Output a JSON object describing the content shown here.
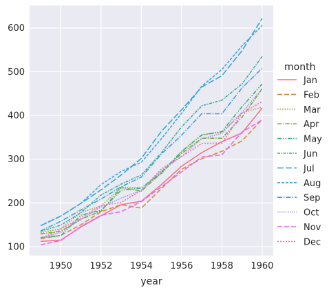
{
  "chart_data": {
    "type": "line",
    "xlabel": "year",
    "ylabel": "",
    "x": [
      1949,
      1950,
      1951,
      1952,
      1953,
      1954,
      1955,
      1956,
      1957,
      1958,
      1959,
      1960
    ],
    "xticks": [
      "1950",
      "1952",
      "1954",
      "1956",
      "1958",
      "1960"
    ],
    "yticks": [
      "100",
      "200",
      "300",
      "400",
      "500",
      "600"
    ],
    "xlim": [
      1948.45,
      1960.55
    ],
    "ylim": [
      79.6,
      651.4
    ],
    "grid": true,
    "legend_title": "month",
    "legend_position": "right",
    "series": [
      {
        "name": "Jan",
        "color": "#f77189",
        "dash": "",
        "values": [
          112,
          115,
          145,
          171,
          196,
          204,
          242,
          284,
          315,
          340,
          360,
          417
        ]
      },
      {
        "name": "Feb",
        "color": "#dc8932",
        "dash": "7,3",
        "values": [
          118,
          126,
          150,
          180,
          196,
          188,
          233,
          277,
          301,
          318,
          342,
          391
        ]
      },
      {
        "name": "Mar",
        "color": "#ae9d31",
        "dash": "1.5,2",
        "values": [
          132,
          141,
          178,
          193,
          236,
          235,
          267,
          317,
          356,
          362,
          406,
          419
        ]
      },
      {
        "name": "Apr",
        "color": "#77ab31",
        "dash": "6,2,1.5,2",
        "values": [
          129,
          135,
          163,
          181,
          235,
          227,
          269,
          313,
          348,
          348,
          396,
          461
        ]
      },
      {
        "name": "May",
        "color": "#33b07a",
        "dash": "6,2,1.5,2,1.5,2",
        "values": [
          121,
          125,
          172,
          183,
          229,
          234,
          270,
          318,
          355,
          363,
          420,
          472
        ]
      },
      {
        "name": "Jun",
        "color": "#36ada4",
        "dash": "4,1.5,1.5,1.5",
        "values": [
          135,
          149,
          178,
          218,
          243,
          264,
          315,
          374,
          422,
          435,
          472,
          535
        ]
      },
      {
        "name": "Jul",
        "color": "#38a9c5",
        "dash": "9,3",
        "values": [
          148,
          170,
          199,
          230,
          264,
          302,
          364,
          413,
          465,
          491,
          548,
          622
        ]
      },
      {
        "name": "Aug",
        "color": "#3ba3ec",
        "dash": "4,2",
        "values": [
          148,
          170,
          199,
          242,
          272,
          293,
          347,
          405,
          467,
          505,
          559,
          606
        ]
      },
      {
        "name": "Sep",
        "color": "#41a0d6",
        "dash": "7,2,1.5,2",
        "values": [
          136,
          158,
          184,
          209,
          237,
          259,
          312,
          355,
          404,
          404,
          463,
          508
        ]
      },
      {
        "name": "Oct",
        "color": "#a48cf4",
        "dash": "1.5,1.5",
        "values": [
          119,
          133,
          162,
          191,
          211,
          229,
          274,
          306,
          347,
          359,
          407,
          461
        ]
      },
      {
        "name": "Nov",
        "color": "#e866f4",
        "dash": "7,3",
        "values": [
          104,
          114,
          146,
          172,
          180,
          203,
          237,
          271,
          305,
          310,
          362,
          390
        ]
      },
      {
        "name": "Dec",
        "color": "#f668c2",
        "dash": "2,2",
        "values": [
          118,
          140,
          166,
          194,
          201,
          229,
          278,
          306,
          336,
          337,
          405,
          432
        ]
      }
    ]
  }
}
